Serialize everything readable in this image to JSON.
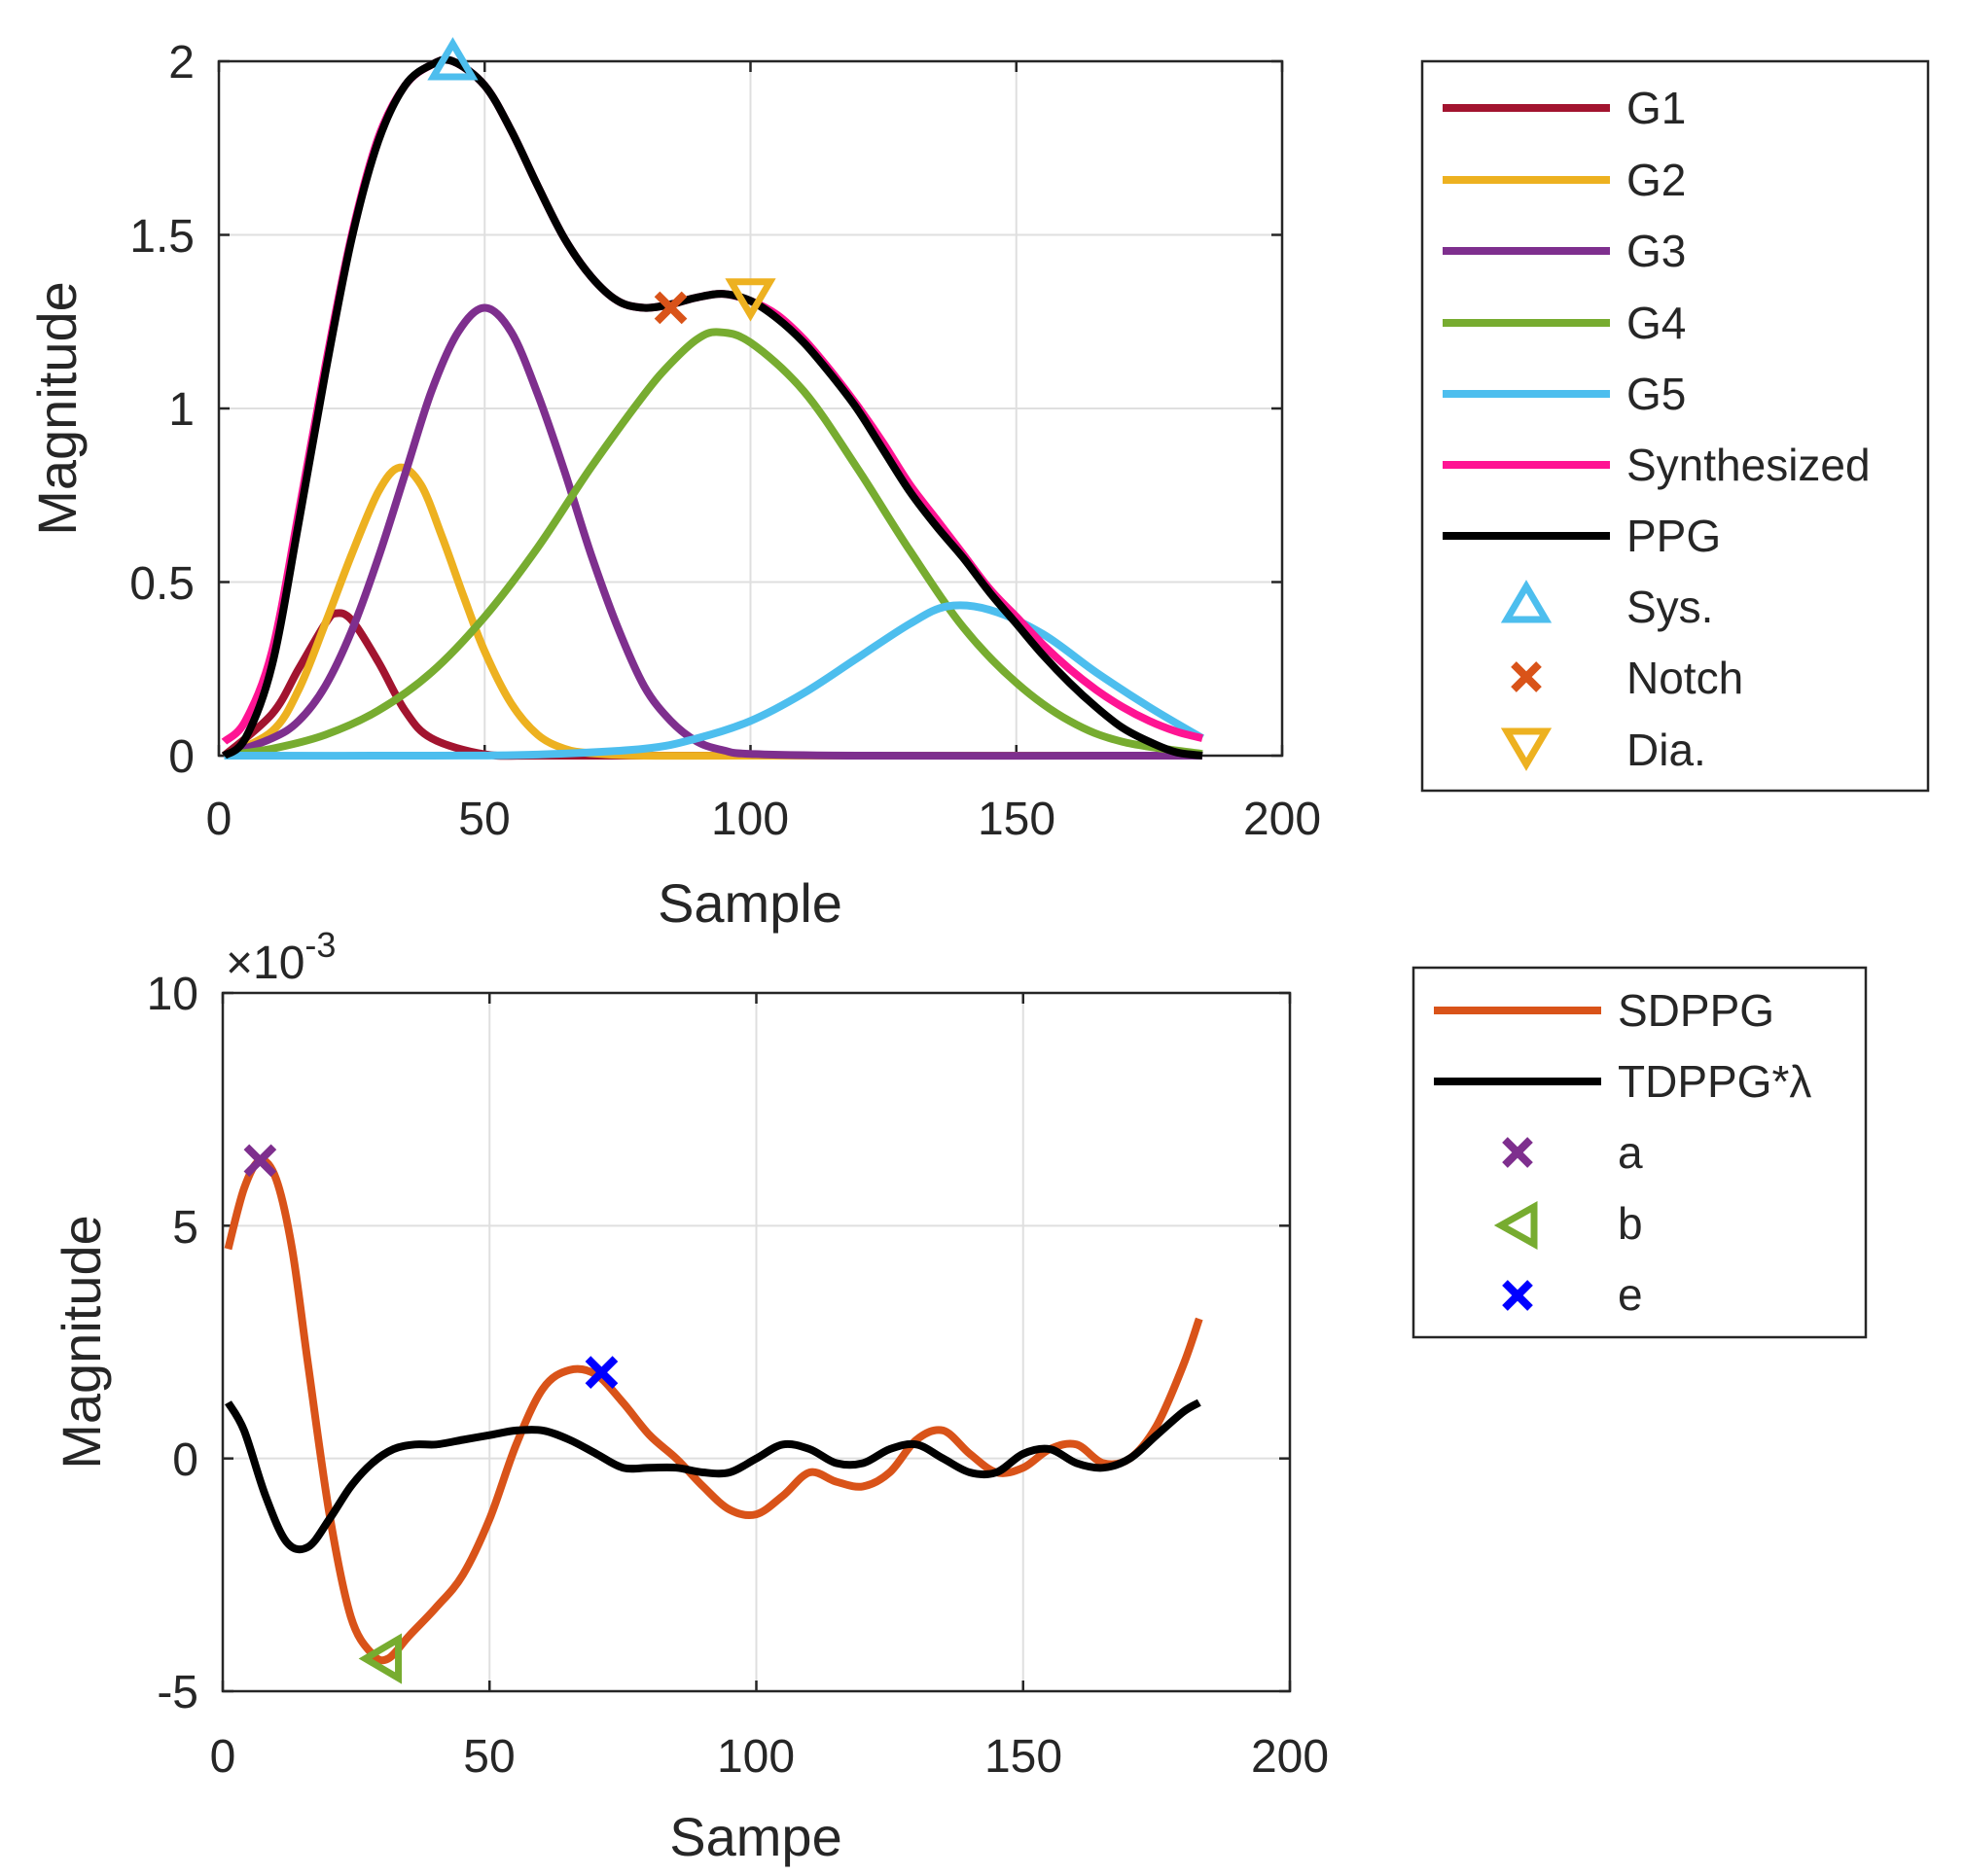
{
  "chart_data": [
    {
      "type": "line",
      "xlabel": "Sample",
      "ylabel": "Magnitude",
      "xlim": [
        0,
        200
      ],
      "ylim": [
        0,
        2
      ],
      "xticks": [
        "0",
        "50",
        "100",
        "150",
        "200"
      ],
      "yticks": [
        "0",
        "0.5",
        "1",
        "1.5",
        "2"
      ],
      "grid": true,
      "legend_position": "outside-right",
      "series": [
        {
          "name": "G1",
          "color": "#A2142F",
          "x": [
            1,
            10,
            15,
            20,
            22,
            25,
            30,
            35,
            40,
            50,
            60,
            80,
            100,
            185
          ],
          "y": [
            0.0,
            0.12,
            0.25,
            0.38,
            0.41,
            0.39,
            0.27,
            0.13,
            0.05,
            0.004,
            0.0,
            0.0,
            0.0,
            0.0
          ]
        },
        {
          "name": "G2",
          "color": "#EDB120",
          "x": [
            1,
            10,
            15,
            20,
            25,
            30,
            34,
            38,
            42,
            46,
            50,
            55,
            60,
            65,
            70,
            80,
            100,
            185
          ],
          "y": [
            0.0,
            0.07,
            0.19,
            0.38,
            0.58,
            0.76,
            0.83,
            0.78,
            0.63,
            0.46,
            0.3,
            0.15,
            0.06,
            0.02,
            0.007,
            0.0,
            0.0,
            0.0
          ]
        },
        {
          "name": "G3",
          "color": "#7E2F8E",
          "x": [
            1,
            10,
            15,
            20,
            25,
            30,
            35,
            40,
            45,
            50,
            55,
            60,
            65,
            70,
            75,
            80,
            85,
            90,
            95,
            100,
            120,
            185
          ],
          "y": [
            0.0,
            0.05,
            0.1,
            0.2,
            0.36,
            0.57,
            0.81,
            1.05,
            1.22,
            1.29,
            1.22,
            1.04,
            0.82,
            0.58,
            0.37,
            0.2,
            0.1,
            0.04,
            0.015,
            0.005,
            0.0,
            0.0
          ]
        },
        {
          "name": "G4",
          "color": "#77AC30",
          "x": [
            1,
            10,
            20,
            30,
            40,
            50,
            60,
            70,
            80,
            85,
            90,
            94,
            100,
            110,
            120,
            130,
            140,
            150,
            160,
            170,
            185
          ],
          "y": [
            0.0,
            0.02,
            0.06,
            0.13,
            0.24,
            0.4,
            0.6,
            0.83,
            1.04,
            1.13,
            1.2,
            1.22,
            1.19,
            1.05,
            0.83,
            0.59,
            0.37,
            0.21,
            0.1,
            0.04,
            0.005
          ]
        },
        {
          "name": "G5",
          "color": "#4DBEEE",
          "x": [
            1,
            40,
            60,
            80,
            90,
            100,
            110,
            120,
            130,
            137,
            145,
            155,
            165,
            175,
            185
          ],
          "y": [
            0.0,
            0.0,
            0.003,
            0.02,
            0.05,
            0.1,
            0.18,
            0.28,
            0.38,
            0.43,
            0.42,
            0.35,
            0.24,
            0.14,
            0.05
          ]
        },
        {
          "name": "Synthesized",
          "color": "#FF1493",
          "x": [
            1,
            5,
            10,
            15,
            20,
            25,
            30,
            35,
            40,
            44,
            50,
            55,
            60,
            65,
            70,
            75,
            80,
            85,
            90,
            95,
            100,
            105,
            110,
            115,
            120,
            125,
            130,
            135,
            140,
            145,
            150,
            155,
            160,
            165,
            170,
            175,
            180,
            185
          ],
          "y": [
            0.04,
            0.1,
            0.3,
            0.7,
            1.12,
            1.5,
            1.78,
            1.93,
            1.99,
            2.0,
            1.93,
            1.8,
            1.64,
            1.49,
            1.38,
            1.31,
            1.29,
            1.3,
            1.32,
            1.33,
            1.31,
            1.27,
            1.2,
            1.11,
            1.01,
            0.9,
            0.78,
            0.68,
            0.58,
            0.48,
            0.4,
            0.32,
            0.25,
            0.19,
            0.14,
            0.1,
            0.07,
            0.05
          ]
        },
        {
          "name": "PPG",
          "color": "#000000",
          "x": [
            1,
            5,
            10,
            15,
            20,
            25,
            30,
            35,
            40,
            44,
            50,
            55,
            60,
            65,
            70,
            75,
            80,
            85,
            90,
            95,
            100,
            105,
            110,
            115,
            120,
            125,
            130,
            135,
            140,
            145,
            150,
            155,
            160,
            165,
            170,
            175,
            180,
            185
          ],
          "y": [
            0.0,
            0.05,
            0.26,
            0.67,
            1.1,
            1.49,
            1.77,
            1.93,
            1.99,
            2.0,
            1.93,
            1.8,
            1.64,
            1.49,
            1.38,
            1.31,
            1.29,
            1.3,
            1.32,
            1.33,
            1.31,
            1.26,
            1.19,
            1.1,
            1.0,
            0.88,
            0.76,
            0.66,
            0.57,
            0.47,
            0.38,
            0.29,
            0.21,
            0.14,
            0.08,
            0.04,
            0.01,
            0.0
          ]
        }
      ],
      "markers": [
        {
          "name": "Sys.",
          "symbol": "triangle-up",
          "color": "#4DBEEE",
          "x": 44,
          "y": 2.0
        },
        {
          "name": "Notch",
          "symbol": "x",
          "color": "#D95319",
          "x": 85,
          "y": 1.29
        },
        {
          "name": "Dia.",
          "symbol": "triangle-down",
          "color": "#EDB120",
          "x": 100,
          "y": 1.32
        }
      ]
    },
    {
      "type": "line",
      "xlabel": "Sampe",
      "ylabel": "Magnitude",
      "y_exponent": "×10",
      "y_exponent_power": "-3",
      "xlim": [
        0,
        200
      ],
      "ylim": [
        -5,
        10
      ],
      "xticks": [
        "0",
        "50",
        "100",
        "150",
        "200"
      ],
      "yticks": [
        "-5",
        "0",
        "5",
        "10"
      ],
      "grid": true,
      "legend_position": "outside-right",
      "series": [
        {
          "name": "SDPPG",
          "color": "#D95319",
          "x": [
            1,
            4,
            7,
            10,
            13,
            16,
            20,
            24,
            28,
            31,
            35,
            40,
            45,
            50,
            55,
            60,
            65,
            70,
            75,
            80,
            85,
            90,
            95,
            100,
            105,
            110,
            115,
            120,
            125,
            130,
            135,
            140,
            145,
            150,
            155,
            160,
            165,
            170,
            175,
            180,
            183
          ],
          "y": [
            4.5,
            5.8,
            6.4,
            6.0,
            4.5,
            2.0,
            -1.2,
            -3.4,
            -4.2,
            -4.3,
            -3.8,
            -3.2,
            -2.5,
            -1.3,
            0.3,
            1.5,
            1.9,
            1.8,
            1.2,
            0.5,
            0.0,
            -0.6,
            -1.1,
            -1.2,
            -0.8,
            -0.3,
            -0.5,
            -0.6,
            -0.3,
            0.4,
            0.6,
            0.1,
            -0.3,
            -0.2,
            0.2,
            0.3,
            -0.1,
            0.0,
            0.7,
            2.0,
            3.0
          ]
        },
        {
          "name": "TDPPG*λ",
          "color": "#000000",
          "x": [
            1,
            4,
            8,
            12,
            16,
            20,
            24,
            28,
            32,
            36,
            40,
            45,
            50,
            55,
            60,
            65,
            70,
            75,
            80,
            85,
            90,
            95,
            100,
            105,
            110,
            115,
            120,
            125,
            130,
            135,
            140,
            145,
            150,
            155,
            160,
            165,
            170,
            175,
            180,
            183
          ],
          "y": [
            1.2,
            0.6,
            -0.8,
            -1.8,
            -1.9,
            -1.3,
            -0.6,
            -0.1,
            0.2,
            0.3,
            0.3,
            0.4,
            0.5,
            0.6,
            0.6,
            0.4,
            0.1,
            -0.2,
            -0.2,
            -0.2,
            -0.3,
            -0.3,
            0.0,
            0.3,
            0.2,
            -0.1,
            -0.1,
            0.2,
            0.3,
            0.0,
            -0.3,
            -0.3,
            0.1,
            0.2,
            -0.1,
            -0.2,
            0.0,
            0.5,
            1.0,
            1.2
          ]
        }
      ],
      "markers": [
        {
          "name": "a",
          "symbol": "x",
          "color": "#7E2F8E",
          "x": 7,
          "y": 6.4
        },
        {
          "name": "b",
          "symbol": "triangle-left",
          "color": "#77AC30",
          "x": 30,
          "y": -4.3
        },
        {
          "name": "e",
          "symbol": "x",
          "color": "#0000FF",
          "x": 71,
          "y": 1.85
        }
      ]
    }
  ]
}
